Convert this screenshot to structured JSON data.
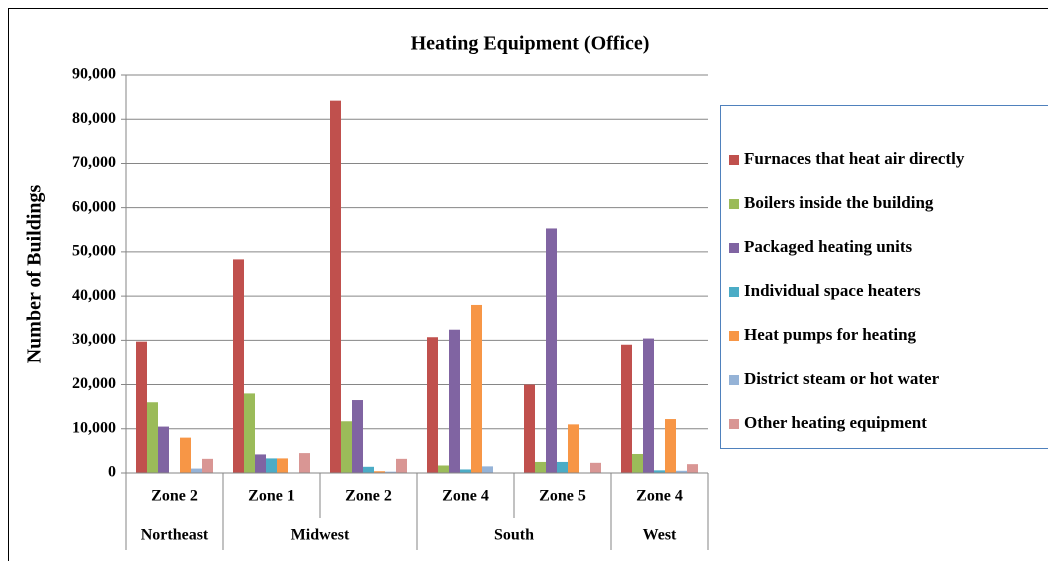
{
  "chart_data": {
    "type": "bar",
    "title": "Heating Equipment (Office)",
    "ylabel": "Number of Buildings",
    "categories": [
      "Zone 2",
      "Zone 1",
      "Zone 2",
      "Zone 4",
      "Zone 5",
      "Zone 4"
    ],
    "groups": [
      {
        "name": "Northeast",
        "span": 1
      },
      {
        "name": "Midwest",
        "span": 2
      },
      {
        "name": "South",
        "span": 2
      },
      {
        "name": "West",
        "span": 1
      }
    ],
    "series": [
      {
        "name": "Furnaces that heat air directly",
        "color": "#c0504d",
        "values": [
          29700,
          48300,
          84200,
          30700,
          20000,
          29000
        ]
      },
      {
        "name": "Boilers inside the building",
        "color": "#9bbb59",
        "values": [
          16000,
          18000,
          11700,
          1700,
          2500,
          4300
        ]
      },
      {
        "name": "Packaged heating units",
        "color": "#8064a2",
        "values": [
          10500,
          4200,
          16500,
          32400,
          55300,
          30400
        ]
      },
      {
        "name": "Individual space heaters",
        "color": "#4bacc6",
        "values": [
          0,
          3300,
          1400,
          800,
          2500,
          600
        ]
      },
      {
        "name": "Heat pumps for heating",
        "color": "#f79646",
        "values": [
          8000,
          3300,
          400,
          38000,
          11000,
          12200
        ]
      },
      {
        "name": "District steam or hot water",
        "color": "#95b3d7",
        "values": [
          1000,
          0,
          300,
          1500,
          0,
          500
        ]
      },
      {
        "name": "Other heating equipment",
        "color": "#d99694",
        "values": [
          3200,
          4500,
          3200,
          0,
          2300,
          2000
        ]
      }
    ],
    "ylim": [
      0,
      90000
    ],
    "yticks": [
      0,
      {
        "value": 10000,
        "label": "10,000"
      },
      {
        "value": 20000,
        "label": "20,000"
      },
      {
        "value": 30000,
        "label": "30,000"
      },
      {
        "value": 40000,
        "label": "40,000"
      },
      {
        "value": 50000,
        "label": "50,000"
      },
      {
        "value": 60000,
        "label": "60,000"
      },
      {
        "value": 70000,
        "label": "70,000"
      },
      {
        "value": 80000,
        "label": "80,000"
      },
      {
        "value": 90000,
        "label": "90,000"
      }
    ],
    "grid": true,
    "legend": "right"
  }
}
